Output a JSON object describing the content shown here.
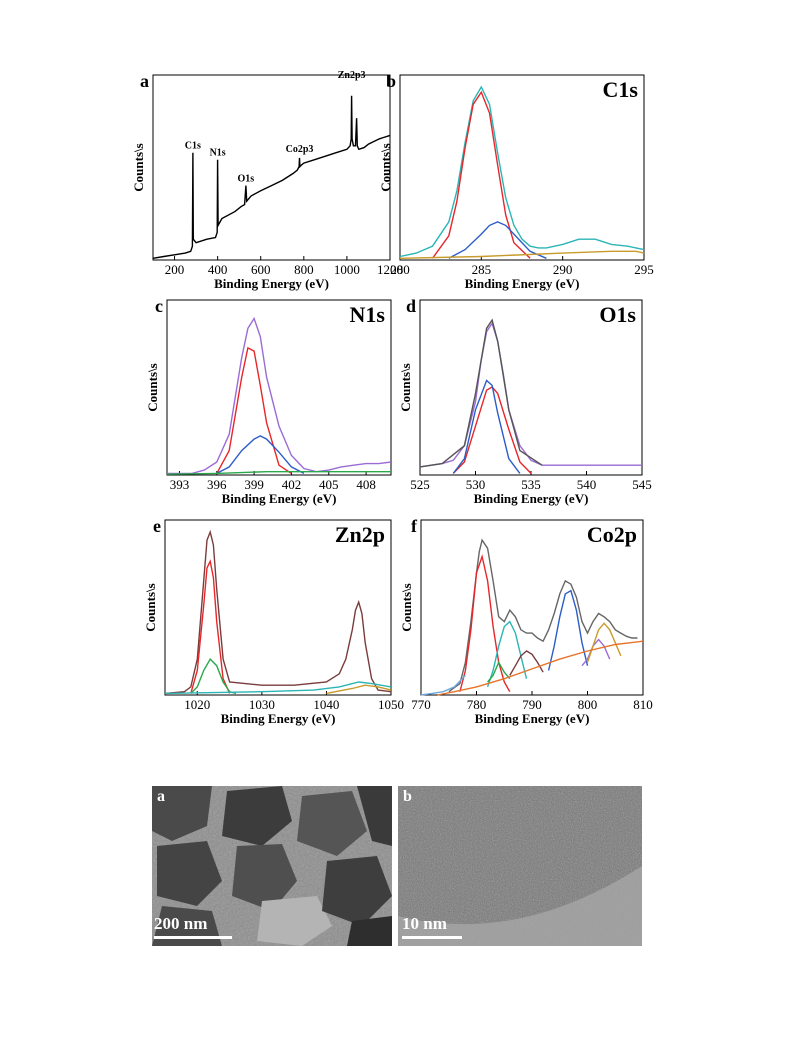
{
  "chart_data": [
    {
      "id": "a",
      "panel_label": "a",
      "type": "line",
      "title": "",
      "xlabel": "Binding Energy (eV)",
      "ylabel": "Counts\\s",
      "xlim": [
        100,
        1200
      ],
      "xticks": [
        200,
        400,
        600,
        800,
        1000,
        1200
      ],
      "annotations": [
        {
          "text": "C1s",
          "x": 285,
          "y": 0.62
        },
        {
          "text": "N1s",
          "x": 400,
          "y": 0.58
        },
        {
          "text": "O1s",
          "x": 531,
          "y": 0.43
        },
        {
          "text": "Co2p3",
          "x": 780,
          "y": 0.6
        },
        {
          "text": "Zn2p3",
          "x": 1022,
          "y": 1.03
        }
      ],
      "series": [
        {
          "color": "#000000",
          "x": [
            100,
            150,
            200,
            250,
            275,
            283,
            285,
            287,
            300,
            350,
            390,
            398,
            400,
            402,
            420,
            480,
            510,
            525,
            531,
            535,
            555,
            600,
            650,
            700,
            750,
            770,
            778,
            780,
            782,
            790,
            800,
            850,
            900,
            950,
            1000,
            1015,
            1020,
            1022,
            1024,
            1030,
            1040,
            1045,
            1048,
            1055,
            1080,
            1100,
            1150,
            1200
          ],
          "y": [
            0.01,
            0.02,
            0.03,
            0.04,
            0.05,
            0.08,
            0.62,
            0.12,
            0.1,
            0.12,
            0.13,
            0.16,
            0.58,
            0.2,
            0.24,
            0.28,
            0.31,
            0.32,
            0.43,
            0.34,
            0.37,
            0.4,
            0.43,
            0.46,
            0.5,
            0.52,
            0.54,
            0.59,
            0.54,
            0.55,
            0.56,
            0.58,
            0.6,
            0.62,
            0.64,
            0.66,
            0.7,
            0.95,
            0.7,
            0.66,
            0.66,
            0.82,
            0.66,
            0.64,
            0.65,
            0.67,
            0.7,
            0.72
          ]
        }
      ]
    },
    {
      "id": "b",
      "panel_label": "b",
      "type": "line",
      "title": "C1s",
      "xlabel": "Binding Energy (eV)",
      "ylabel": "Counts\\s",
      "xlim": [
        280,
        295
      ],
      "xticks": [
        280,
        285,
        290,
        295
      ],
      "series": [
        {
          "color": "#2bb5b5",
          "x": [
            280,
            281,
            282,
            283,
            283.5,
            284,
            284.5,
            285,
            285.5,
            286,
            286.5,
            287,
            287.5,
            288,
            288.5,
            289,
            290,
            291,
            292,
            293,
            294,
            295
          ],
          "y": [
            0.02,
            0.04,
            0.08,
            0.22,
            0.4,
            0.68,
            0.92,
            1.0,
            0.9,
            0.62,
            0.36,
            0.2,
            0.12,
            0.08,
            0.07,
            0.07,
            0.09,
            0.12,
            0.12,
            0.09,
            0.08,
            0.06
          ]
        },
        {
          "color": "#e8262a",
          "x": [
            282,
            283,
            283.5,
            284,
            284.5,
            285,
            285.5,
            286,
            286.5,
            287,
            288
          ],
          "y": [
            0.01,
            0.14,
            0.34,
            0.65,
            0.9,
            0.97,
            0.85,
            0.55,
            0.26,
            0.1,
            0.01
          ]
        },
        {
          "color": "#2b5dc8",
          "x": [
            283,
            284,
            285,
            285.5,
            286,
            286.5,
            287,
            288,
            289
          ],
          "y": [
            0.01,
            0.06,
            0.15,
            0.2,
            0.22,
            0.2,
            0.15,
            0.05,
            0.01
          ]
        },
        {
          "color": "#c89b2a",
          "x": [
            280,
            285,
            290,
            293,
            294.5,
            295
          ],
          "y": [
            0.01,
            0.02,
            0.04,
            0.05,
            0.05,
            0.04
          ]
        }
      ]
    },
    {
      "id": "c",
      "panel_label": "c",
      "type": "line",
      "title": "N1s",
      "xlabel": "Binding Energy (eV)",
      "ylabel": "Counts\\s",
      "xlim": [
        392,
        410
      ],
      "xticks": [
        393,
        396,
        399,
        402,
        405,
        408
      ],
      "series": [
        {
          "color": "#9b6bd6",
          "x": [
            392,
            394,
            395,
            396,
            397,
            398,
            398.5,
            399,
            399.5,
            400,
            401,
            402,
            403,
            404,
            405,
            406,
            407,
            408,
            409,
            410
          ],
          "y": [
            0.01,
            0.01,
            0.03,
            0.08,
            0.25,
            0.72,
            0.9,
            0.96,
            0.85,
            0.6,
            0.3,
            0.12,
            0.04,
            0.02,
            0.03,
            0.05,
            0.06,
            0.07,
            0.07,
            0.08
          ]
        },
        {
          "color": "#e8262a",
          "x": [
            396,
            397,
            398,
            398.5,
            399,
            399.5,
            400,
            401,
            402
          ],
          "y": [
            0.01,
            0.15,
            0.6,
            0.78,
            0.76,
            0.55,
            0.32,
            0.06,
            0.01
          ]
        },
        {
          "color": "#2b5dc8",
          "x": [
            396,
            397,
            398,
            399,
            399.5,
            400,
            401,
            402,
            403
          ],
          "y": [
            0.01,
            0.05,
            0.15,
            0.22,
            0.24,
            0.22,
            0.14,
            0.05,
            0.01
          ]
        },
        {
          "color": "#2aa84a",
          "x": [
            392,
            396,
            400,
            404,
            410
          ],
          "y": [
            0.005,
            0.01,
            0.02,
            0.02,
            0.02
          ]
        }
      ]
    },
    {
      "id": "d",
      "panel_label": "d",
      "type": "line",
      "title": "O1s",
      "xlabel": "Binding Energy (eV)",
      "ylabel": "Counts\\s",
      "xlim": [
        525,
        545
      ],
      "xticks": [
        525,
        530,
        535,
        540,
        545
      ],
      "series": [
        {
          "color": "#9b6bd6",
          "x": [
            525,
            526,
            527,
            528,
            529,
            530,
            530.5,
            531,
            531.5,
            532,
            532.5,
            533,
            534,
            535,
            536,
            538,
            540,
            542,
            545
          ],
          "y": [
            0.05,
            0.06,
            0.07,
            0.09,
            0.18,
            0.45,
            0.7,
            0.88,
            0.93,
            0.82,
            0.62,
            0.4,
            0.18,
            0.09,
            0.06,
            0.06,
            0.06,
            0.06,
            0.06
          ]
        },
        {
          "color": "#e8262a",
          "x": [
            528,
            529,
            530,
            531,
            531.5,
            532,
            533,
            534,
            535
          ],
          "y": [
            0.01,
            0.08,
            0.3,
            0.52,
            0.54,
            0.5,
            0.28,
            0.08,
            0.01
          ]
        },
        {
          "color": "#2b5dc8",
          "x": [
            528,
            529,
            530,
            531,
            531.5,
            532,
            533,
            534
          ],
          "y": [
            0.01,
            0.1,
            0.4,
            0.58,
            0.55,
            0.38,
            0.1,
            0.01
          ]
        },
        {
          "color": "#555555",
          "x": [
            525,
            527,
            529,
            530,
            531,
            531.5,
            532,
            533,
            534,
            536
          ],
          "y": [
            0.05,
            0.07,
            0.18,
            0.5,
            0.9,
            0.95,
            0.82,
            0.4,
            0.15,
            0.06
          ]
        }
      ]
    },
    {
      "id": "e",
      "panel_label": "e",
      "type": "line",
      "title": "Zn2p",
      "xlabel": "Binding Energy (eV)",
      "ylabel": "Counts\\s",
      "xlim": [
        1015,
        1050
      ],
      "xticks": [
        1020,
        1030,
        1040,
        1050
      ],
      "series": [
        {
          "color": "#7a3c3c",
          "x": [
            1015,
            1018,
            1019,
            1020,
            1021,
            1021.5,
            1022,
            1022.5,
            1023,
            1024,
            1025,
            1030,
            1035,
            1040,
            1042,
            1043,
            1044,
            1044.5,
            1045,
            1045.5,
            1046,
            1047,
            1048,
            1050
          ],
          "y": [
            0.01,
            0.02,
            0.05,
            0.22,
            0.7,
            0.95,
            1.0,
            0.92,
            0.65,
            0.22,
            0.08,
            0.06,
            0.06,
            0.08,
            0.13,
            0.22,
            0.4,
            0.52,
            0.57,
            0.5,
            0.32,
            0.1,
            0.03,
            0.02
          ]
        },
        {
          "color": "#e8262a",
          "x": [
            1019,
            1020,
            1021,
            1021.5,
            1022,
            1022.5,
            1023,
            1024,
            1025
          ],
          "y": [
            0.01,
            0.15,
            0.55,
            0.78,
            0.82,
            0.72,
            0.45,
            0.1,
            0.01
          ]
        },
        {
          "color": "#2aa84a",
          "x": [
            1019,
            1020,
            1021,
            1022,
            1023,
            1024,
            1025,
            1026
          ],
          "y": [
            0.01,
            0.05,
            0.15,
            0.22,
            0.18,
            0.08,
            0.02,
            0.01
          ]
        },
        {
          "color": "#2bb5b5",
          "x": [
            1015,
            1030,
            1038,
            1042,
            1045,
            1047,
            1050
          ],
          "y": [
            0.01,
            0.02,
            0.03,
            0.05,
            0.08,
            0.07,
            0.05
          ]
        },
        {
          "color": "#c89b2a",
          "x": [
            1040,
            1044,
            1046,
            1048,
            1050
          ],
          "y": [
            0.01,
            0.04,
            0.06,
            0.05,
            0.03
          ]
        }
      ]
    },
    {
      "id": "f",
      "panel_label": "f",
      "type": "line",
      "title": "Co2p",
      "xlabel": "Binding Energy (eV)",
      "ylabel": "Counts\\s",
      "xlim": [
        770,
        810
      ],
      "xticks": [
        770,
        780,
        790,
        800,
        810
      ],
      "series": [
        {
          "color": "#666666",
          "x": [
            775,
            777,
            778,
            779,
            780,
            780.5,
            781,
            782,
            783,
            784,
            785,
            786,
            787,
            788,
            789,
            790,
            791,
            792,
            793,
            794,
            795,
            796,
            797,
            798,
            799,
            800,
            801,
            802,
            803,
            804,
            805,
            806,
            807,
            808,
            809
          ],
          "y": [
            0.02,
            0.07,
            0.2,
            0.45,
            0.75,
            0.88,
            0.95,
            0.9,
            0.7,
            0.48,
            0.45,
            0.52,
            0.48,
            0.4,
            0.38,
            0.38,
            0.35,
            0.33,
            0.4,
            0.5,
            0.62,
            0.7,
            0.68,
            0.6,
            0.45,
            0.38,
            0.45,
            0.5,
            0.48,
            0.45,
            0.4,
            0.38,
            0.36,
            0.35,
            0.35
          ]
        },
        {
          "color": "#e8262a",
          "x": [
            777,
            778,
            779,
            780,
            781,
            782,
            783,
            784,
            785,
            786
          ],
          "y": [
            0.02,
            0.15,
            0.4,
            0.75,
            0.85,
            0.7,
            0.42,
            0.2,
            0.08,
            0.02
          ]
        },
        {
          "color": "#2bb5b5",
          "x": [
            782,
            783,
            784,
            785,
            786,
            787,
            788,
            789
          ],
          "y": [
            0.05,
            0.15,
            0.3,
            0.42,
            0.45,
            0.38,
            0.24,
            0.1
          ]
        },
        {
          "color": "#7a3c3c",
          "x": [
            786,
            787,
            788,
            789,
            790,
            791,
            792
          ],
          "y": [
            0.12,
            0.18,
            0.24,
            0.27,
            0.25,
            0.2,
            0.14
          ]
        },
        {
          "color": "#2aa84a",
          "x": [
            782,
            783,
            784,
            785,
            786
          ],
          "y": [
            0.08,
            0.12,
            0.2,
            0.14,
            0.1
          ]
        },
        {
          "color": "#2b5dc8",
          "x": [
            793,
            794,
            795,
            796,
            797,
            798,
            799,
            800
          ],
          "y": [
            0.15,
            0.3,
            0.48,
            0.62,
            0.64,
            0.52,
            0.32,
            0.18
          ]
        },
        {
          "color": "#9b6bd6",
          "x": [
            799,
            800,
            801,
            802,
            803,
            804
          ],
          "y": [
            0.18,
            0.22,
            0.3,
            0.34,
            0.3,
            0.22
          ]
        },
        {
          "color": "#c89b2a",
          "x": [
            800,
            801,
            802,
            803,
            804,
            805,
            806
          ],
          "y": [
            0.2,
            0.3,
            0.4,
            0.44,
            0.4,
            0.32,
            0.24
          ]
        },
        {
          "color": "#e8742a",
          "x": [
            773,
            776,
            780,
            785,
            790,
            795,
            800,
            805,
            810
          ],
          "y": [
            0.0,
            0.02,
            0.05,
            0.1,
            0.16,
            0.22,
            0.27,
            0.31,
            0.33
          ]
        },
        {
          "color": "#6fa8dc",
          "x": [
            770,
            772,
            774,
            776,
            778
          ],
          "y": [
            0.0,
            0.01,
            0.02,
            0.05,
            0.12
          ]
        }
      ]
    }
  ],
  "tem_images": [
    {
      "id": "tem-a",
      "panel_label": "a",
      "scale_bar": "200 nm"
    },
    {
      "id": "tem-b",
      "panel_label": "b",
      "scale_bar": "10 nm"
    }
  ]
}
